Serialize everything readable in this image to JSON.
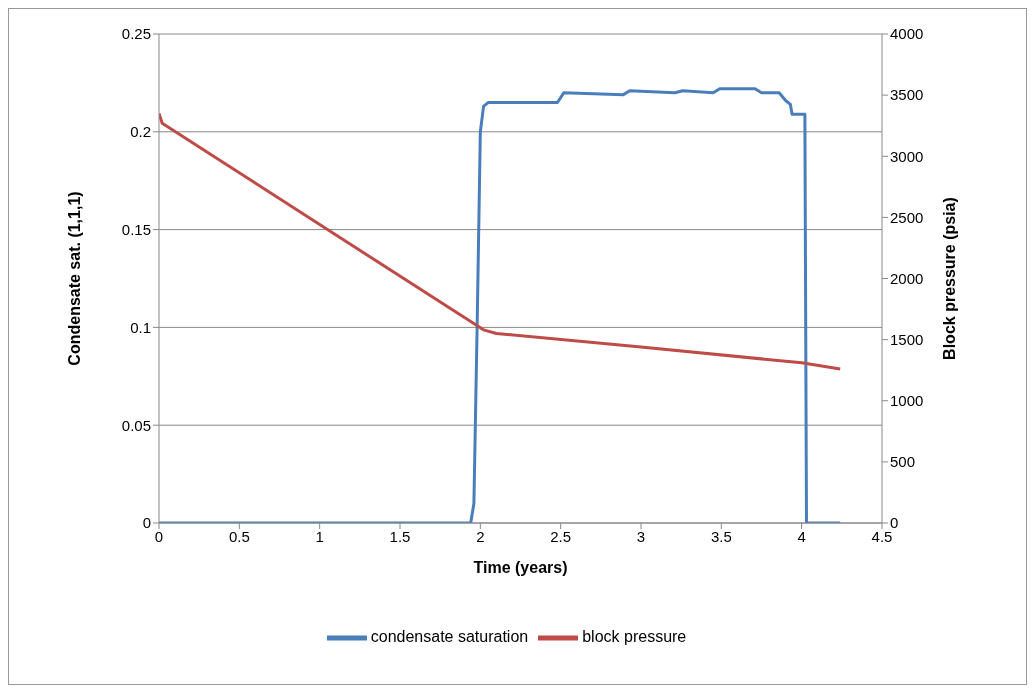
{
  "chart_data": {
    "type": "line",
    "xlabel": "Time (years)",
    "ylabel": "Condensate  sat. (1,1,1)",
    "y2label": "Block pressure (psia)",
    "xlim": [
      0,
      4.5
    ],
    "xticks": [
      0,
      0.5,
      1,
      1.5,
      2,
      2.5,
      3,
      3.5,
      4,
      4.5
    ],
    "ylim": [
      0,
      0.25
    ],
    "yticks": [
      0,
      0.05,
      0.1,
      0.15,
      0.2,
      0.25
    ],
    "y2lim": [
      0,
      4000
    ],
    "y2ticks": [
      0,
      500,
      1000,
      1500,
      2000,
      2500,
      3000,
      3500,
      4000
    ],
    "grid": "y",
    "legend": "bottom",
    "marker": "none",
    "series": [
      {
        "name": "condensate saturation",
        "color": "#4a7ebb",
        "x": [
          0,
          1.94,
          1.96,
          1.98,
          2.0,
          2.02,
          2.05,
          2.48,
          2.52,
          2.89,
          2.93,
          3.21,
          3.26,
          3.45,
          3.49,
          3.71,
          3.75,
          3.86,
          3.9,
          3.93,
          3.94,
          4.02,
          4.03,
          4.24
        ],
        "values": [
          0,
          0,
          0.01,
          0.1,
          0.2,
          0.213,
          0.215,
          0.215,
          0.22,
          0.219,
          0.221,
          0.22,
          0.221,
          0.22,
          0.222,
          0.222,
          0.22,
          0.22,
          0.216,
          0.214,
          0.209,
          0.209,
          0,
          0
        ]
      },
      {
        "name": "block pressure",
        "color": "#be4b48",
        "axis": "y2",
        "x": [
          0,
          0.02,
          2.02,
          2.1,
          3.0,
          4.0,
          4.24
        ],
        "values": [
          3350,
          3270,
          1580,
          1550,
          1440,
          1310,
          1260
        ]
      }
    ]
  }
}
